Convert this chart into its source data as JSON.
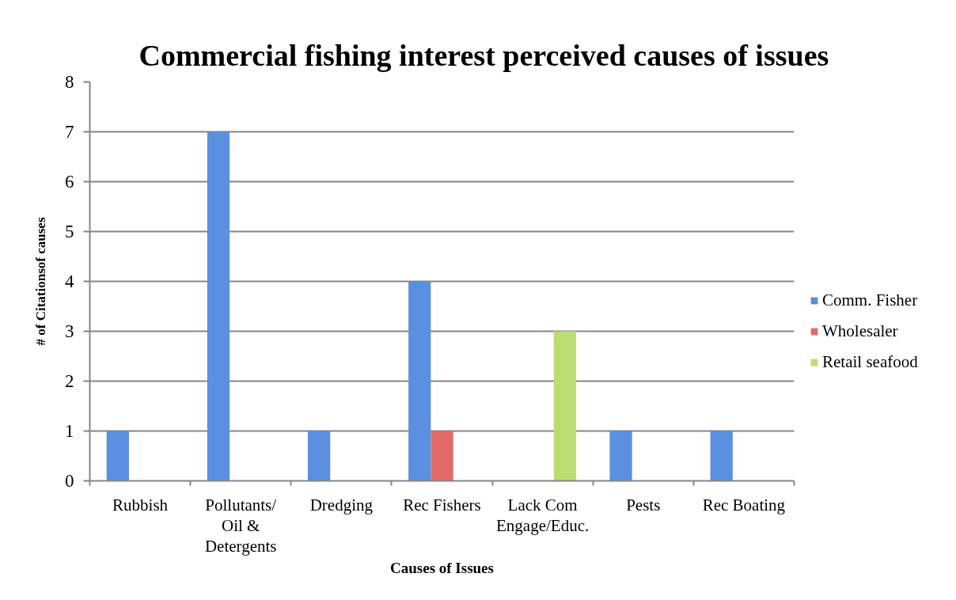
{
  "chart_data": {
    "type": "bar",
    "title": "Commercial fishing interest perceived causes of issues",
    "xlabel": "Causes of Issues",
    "ylabel": "# of Citationsof causes",
    "categories": [
      "Rubbish",
      "Pollutants/ Oil & Detergents",
      "Dredging",
      "Rec Fishers",
      "Lack Com Engage/Educ.",
      "Pests",
      "Rec Boating"
    ],
    "series": [
      {
        "name": "Comm. Fisher",
        "color": "#5b8fe0",
        "values": [
          1,
          7,
          1,
          4,
          null,
          1,
          1
        ]
      },
      {
        "name": "Wholesaler",
        "color": "#e46a6a",
        "values": [
          null,
          null,
          null,
          1,
          null,
          null,
          null
        ]
      },
      {
        "name": "Retail seafood",
        "color": "#bade72",
        "values": [
          null,
          null,
          null,
          null,
          3,
          null,
          null
        ]
      }
    ],
    "ylim": [
      0,
      8
    ],
    "yticks": [
      0,
      1,
      2,
      3,
      4,
      5,
      6,
      7,
      8
    ],
    "grid": "y",
    "legend": "right"
  }
}
